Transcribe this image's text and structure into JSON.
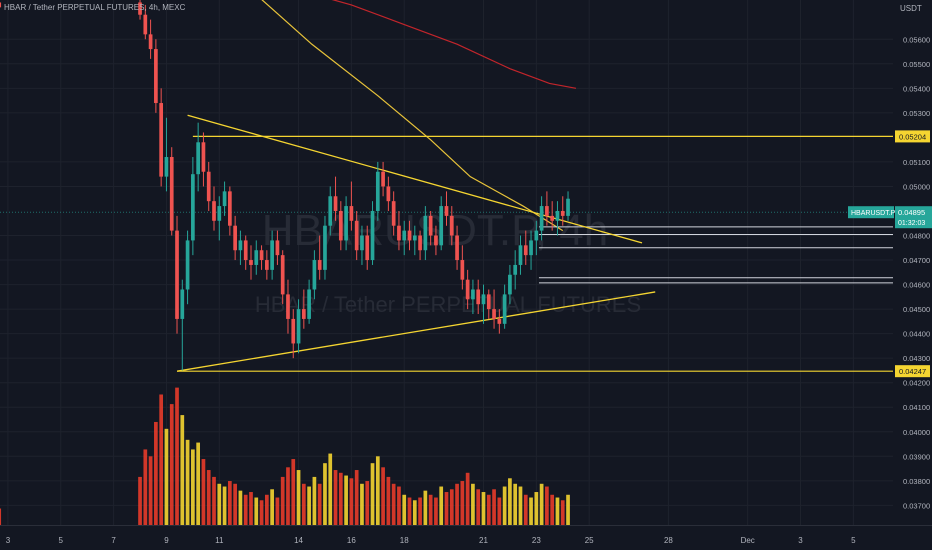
{
  "header": {
    "symbol_title": "HBAR / Tether PERPETUAL FUTURES, 4h, MEXC",
    "price_unit": "USDT"
  },
  "watermark": {
    "symbol": "HBARUSDT.P, 4h",
    "description": "HBAR / Tether PERPETUAL FUTURES"
  },
  "price_tag": {
    "symbol": "HBARUSDT.P",
    "price": "0.04895",
    "countdown": "01:32:03"
  },
  "colors": {
    "background": "#131722",
    "up_candle": "#26a69a",
    "down_candle": "#ef5350",
    "trendline": "#f5d531",
    "level_line": "#d1d4dc",
    "ma_yellow": "#e8c33a",
    "ma_red": "#c2252b",
    "vol_up": "#f5d531",
    "vol_down": "#e83b2a"
  },
  "chart_data": {
    "type": "candlestick",
    "title": "HBAR / Tether PERPETUAL FUTURES, 4h, MEXC",
    "y_unit": "USDT",
    "ylim": [
      0.0362,
      0.0576
    ],
    "y_ticks": [
      "0.05600",
      "0.05500",
      "0.05400",
      "0.05300",
      "0.05100",
      "0.05000",
      "0.04800",
      "0.04700",
      "0.04600",
      "0.04500",
      "0.04400",
      "0.04300",
      "0.04200",
      "0.04100",
      "0.04000",
      "0.03900",
      "0.03800",
      "0.03700"
    ],
    "x_ticks": [
      "3",
      "5",
      "7",
      "9",
      "11",
      "14",
      "16",
      "18",
      "21",
      "23",
      "25",
      "28",
      "Dec",
      "3",
      "5"
    ],
    "x_tick_days": [
      3,
      5,
      7,
      9,
      11,
      14,
      16,
      18,
      21,
      23,
      25,
      28,
      31,
      33,
      35
    ],
    "x_range_days": [
      2.7,
      36.5
    ],
    "grid": true,
    "price_labels": [
      {
        "price": 0.05204,
        "label": "0.05204"
      },
      {
        "price": 0.04247,
        "label": "0.04247"
      }
    ],
    "horizontal_levels": [
      0.04835,
      0.04804,
      0.0475,
      0.04628,
      0.04607
    ],
    "level_x_start_day": 23.1,
    "trendlines": [
      {
        "name": "",
        "points": [
          [
            9.8,
            0.0529
          ],
          [
            27.0,
            0.0477
          ]
        ]
      },
      {
        "name": "",
        "points": [
          [
            9.4,
            0.04247
          ],
          [
            27.5,
            0.0457
          ]
        ]
      }
    ],
    "price_line": 0.04895,
    "moving_averages": [
      {
        "color": "#e8c33a",
        "points": [
          [
            12.0,
            0.0582
          ],
          [
            14.5,
            0.0558
          ],
          [
            17.0,
            0.0537
          ],
          [
            19.0,
            0.0519
          ],
          [
            20.5,
            0.0504
          ],
          [
            21.5,
            0.0498
          ],
          [
            22.5,
            0.0492
          ],
          [
            24.0,
            0.0482
          ]
        ]
      },
      {
        "color": "#c2252b",
        "points": [
          [
            14.0,
            0.058
          ],
          [
            16.0,
            0.0574
          ],
          [
            18.0,
            0.0566
          ],
          [
            20.0,
            0.0558
          ],
          [
            22.0,
            0.0548
          ],
          [
            23.5,
            0.0542
          ],
          [
            24.5,
            0.054
          ]
        ]
      }
    ],
    "volume": {
      "bottom": 0.0362,
      "top": 0.0418,
      "max_value": 1.0
    },
    "candles": [
      {
        "t": 2.67,
        "o": 0.0575,
        "h": 0.0578,
        "l": 0.0571,
        "c": 0.0573,
        "v": 0.12
      },
      {
        "t": 8.0,
        "o": 0.0575,
        "h": 0.058,
        "l": 0.0568,
        "c": 0.057,
        "v": 0.35
      },
      {
        "t": 8.2,
        "o": 0.057,
        "h": 0.0574,
        "l": 0.056,
        "c": 0.0562,
        "v": 0.55
      },
      {
        "t": 8.4,
        "o": 0.0562,
        "h": 0.0568,
        "l": 0.0552,
        "c": 0.0556,
        "v": 0.5
      },
      {
        "t": 8.6,
        "o": 0.0556,
        "h": 0.056,
        "l": 0.053,
        "c": 0.0534,
        "v": 0.75
      },
      {
        "t": 8.8,
        "o": 0.0534,
        "h": 0.054,
        "l": 0.05,
        "c": 0.0504,
        "v": 0.95
      },
      {
        "t": 9.0,
        "o": 0.0504,
        "h": 0.0528,
        "l": 0.0498,
        "c": 0.0512,
        "v": 0.7
      },
      {
        "t": 9.2,
        "o": 0.0512,
        "h": 0.0516,
        "l": 0.048,
        "c": 0.0482,
        "v": 0.88
      },
      {
        "t": 9.4,
        "o": 0.0482,
        "h": 0.0488,
        "l": 0.044,
        "c": 0.0446,
        "v": 1.0
      },
      {
        "t": 9.6,
        "o": 0.0446,
        "h": 0.0462,
        "l": 0.0425,
        "c": 0.0458,
        "v": 0.8
      },
      {
        "t": 9.8,
        "o": 0.0458,
        "h": 0.0482,
        "l": 0.0452,
        "c": 0.0478,
        "v": 0.62
      },
      {
        "t": 10.0,
        "o": 0.0478,
        "h": 0.0512,
        "l": 0.0472,
        "c": 0.0505,
        "v": 0.55
      },
      {
        "t": 10.2,
        "o": 0.0505,
        "h": 0.0526,
        "l": 0.0498,
        "c": 0.0518,
        "v": 0.6
      },
      {
        "t": 10.4,
        "o": 0.0518,
        "h": 0.0522,
        "l": 0.05,
        "c": 0.0506,
        "v": 0.48
      },
      {
        "t": 10.6,
        "o": 0.0506,
        "h": 0.051,
        "l": 0.049,
        "c": 0.0494,
        "v": 0.4
      },
      {
        "t": 10.8,
        "o": 0.0494,
        "h": 0.05,
        "l": 0.0482,
        "c": 0.0486,
        "v": 0.35
      },
      {
        "t": 11.0,
        "o": 0.0486,
        "h": 0.0496,
        "l": 0.0478,
        "c": 0.0492,
        "v": 0.3
      },
      {
        "t": 11.2,
        "o": 0.0492,
        "h": 0.0502,
        "l": 0.0488,
        "c": 0.0498,
        "v": 0.28
      },
      {
        "t": 11.4,
        "o": 0.0498,
        "h": 0.05,
        "l": 0.048,
        "c": 0.0484,
        "v": 0.32
      },
      {
        "t": 11.6,
        "o": 0.0484,
        "h": 0.0488,
        "l": 0.047,
        "c": 0.0474,
        "v": 0.3
      },
      {
        "t": 11.8,
        "o": 0.0474,
        "h": 0.0482,
        "l": 0.0468,
        "c": 0.0478,
        "v": 0.25
      },
      {
        "t": 12.0,
        "o": 0.0478,
        "h": 0.048,
        "l": 0.0466,
        "c": 0.047,
        "v": 0.22
      },
      {
        "t": 12.2,
        "o": 0.047,
        "h": 0.0476,
        "l": 0.0462,
        "c": 0.0468,
        "v": 0.24
      },
      {
        "t": 12.4,
        "o": 0.0468,
        "h": 0.0478,
        "l": 0.0464,
        "c": 0.0474,
        "v": 0.2
      },
      {
        "t": 12.6,
        "o": 0.0474,
        "h": 0.0476,
        "l": 0.0466,
        "c": 0.047,
        "v": 0.18
      },
      {
        "t": 12.8,
        "o": 0.047,
        "h": 0.0474,
        "l": 0.0462,
        "c": 0.0466,
        "v": 0.22
      },
      {
        "t": 13.0,
        "o": 0.0466,
        "h": 0.0482,
        "l": 0.0462,
        "c": 0.0478,
        "v": 0.26
      },
      {
        "t": 13.2,
        "o": 0.0478,
        "h": 0.0482,
        "l": 0.0468,
        "c": 0.0472,
        "v": 0.2
      },
      {
        "t": 13.4,
        "o": 0.0472,
        "h": 0.0474,
        "l": 0.0452,
        "c": 0.0456,
        "v": 0.35
      },
      {
        "t": 13.6,
        "o": 0.0456,
        "h": 0.0462,
        "l": 0.044,
        "c": 0.0446,
        "v": 0.42
      },
      {
        "t": 13.8,
        "o": 0.0446,
        "h": 0.045,
        "l": 0.043,
        "c": 0.0436,
        "v": 0.48
      },
      {
        "t": 14.0,
        "o": 0.0436,
        "h": 0.0454,
        "l": 0.0432,
        "c": 0.045,
        "v": 0.4
      },
      {
        "t": 14.2,
        "o": 0.045,
        "h": 0.0458,
        "l": 0.0442,
        "c": 0.0446,
        "v": 0.3
      },
      {
        "t": 14.4,
        "o": 0.0446,
        "h": 0.0462,
        "l": 0.0444,
        "c": 0.0458,
        "v": 0.28
      },
      {
        "t": 14.6,
        "o": 0.0458,
        "h": 0.0474,
        "l": 0.0454,
        "c": 0.047,
        "v": 0.35
      },
      {
        "t": 14.8,
        "o": 0.047,
        "h": 0.048,
        "l": 0.0462,
        "c": 0.0466,
        "v": 0.3
      },
      {
        "t": 15.0,
        "o": 0.0466,
        "h": 0.0488,
        "l": 0.0462,
        "c": 0.0484,
        "v": 0.45
      },
      {
        "t": 15.2,
        "o": 0.0484,
        "h": 0.05,
        "l": 0.048,
        "c": 0.0496,
        "v": 0.52
      },
      {
        "t": 15.4,
        "o": 0.0496,
        "h": 0.0504,
        "l": 0.0486,
        "c": 0.049,
        "v": 0.4
      },
      {
        "t": 15.6,
        "o": 0.049,
        "h": 0.0494,
        "l": 0.0474,
        "c": 0.0478,
        "v": 0.38
      },
      {
        "t": 15.8,
        "o": 0.0478,
        "h": 0.0496,
        "l": 0.0474,
        "c": 0.0492,
        "v": 0.36
      },
      {
        "t": 16.0,
        "o": 0.0492,
        "h": 0.0502,
        "l": 0.0482,
        "c": 0.0486,
        "v": 0.34
      },
      {
        "t": 16.2,
        "o": 0.0486,
        "h": 0.049,
        "l": 0.047,
        "c": 0.0474,
        "v": 0.4
      },
      {
        "t": 16.4,
        "o": 0.0474,
        "h": 0.0484,
        "l": 0.0468,
        "c": 0.048,
        "v": 0.3
      },
      {
        "t": 16.6,
        "o": 0.048,
        "h": 0.0484,
        "l": 0.0466,
        "c": 0.047,
        "v": 0.32
      },
      {
        "t": 16.8,
        "o": 0.047,
        "h": 0.0494,
        "l": 0.0468,
        "c": 0.049,
        "v": 0.45
      },
      {
        "t": 17.0,
        "o": 0.049,
        "h": 0.051,
        "l": 0.0486,
        "c": 0.0506,
        "v": 0.5
      },
      {
        "t": 17.2,
        "o": 0.0506,
        "h": 0.051,
        "l": 0.0496,
        "c": 0.05,
        "v": 0.42
      },
      {
        "t": 17.4,
        "o": 0.05,
        "h": 0.0504,
        "l": 0.049,
        "c": 0.0494,
        "v": 0.35
      },
      {
        "t": 17.6,
        "o": 0.0494,
        "h": 0.0498,
        "l": 0.048,
        "c": 0.0484,
        "v": 0.3
      },
      {
        "t": 17.8,
        "o": 0.0484,
        "h": 0.049,
        "l": 0.0474,
        "c": 0.0478,
        "v": 0.28
      },
      {
        "t": 18.0,
        "o": 0.0478,
        "h": 0.0486,
        "l": 0.0472,
        "c": 0.0482,
        "v": 0.22
      },
      {
        "t": 18.2,
        "o": 0.0482,
        "h": 0.0486,
        "l": 0.0474,
        "c": 0.0478,
        "v": 0.2
      },
      {
        "t": 18.4,
        "o": 0.0478,
        "h": 0.0484,
        "l": 0.0472,
        "c": 0.048,
        "v": 0.18
      },
      {
        "t": 18.6,
        "o": 0.048,
        "h": 0.0482,
        "l": 0.047,
        "c": 0.0474,
        "v": 0.2
      },
      {
        "t": 18.8,
        "o": 0.0474,
        "h": 0.0492,
        "l": 0.047,
        "c": 0.0488,
        "v": 0.25
      },
      {
        "t": 19.0,
        "o": 0.0488,
        "h": 0.049,
        "l": 0.0476,
        "c": 0.048,
        "v": 0.22
      },
      {
        "t": 19.2,
        "o": 0.048,
        "h": 0.0484,
        "l": 0.0472,
        "c": 0.0476,
        "v": 0.2
      },
      {
        "t": 19.4,
        "o": 0.0476,
        "h": 0.0496,
        "l": 0.0474,
        "c": 0.0492,
        "v": 0.28
      },
      {
        "t": 19.6,
        "o": 0.0492,
        "h": 0.0498,
        "l": 0.0484,
        "c": 0.0488,
        "v": 0.24
      },
      {
        "t": 19.8,
        "o": 0.0488,
        "h": 0.0492,
        "l": 0.0476,
        "c": 0.048,
        "v": 0.26
      },
      {
        "t": 20.0,
        "o": 0.048,
        "h": 0.0484,
        "l": 0.0466,
        "c": 0.047,
        "v": 0.3
      },
      {
        "t": 20.2,
        "o": 0.047,
        "h": 0.0476,
        "l": 0.0458,
        "c": 0.0462,
        "v": 0.32
      },
      {
        "t": 20.4,
        "o": 0.0462,
        "h": 0.0466,
        "l": 0.045,
        "c": 0.0454,
        "v": 0.38
      },
      {
        "t": 20.6,
        "o": 0.0454,
        "h": 0.0462,
        "l": 0.0448,
        "c": 0.0458,
        "v": 0.3
      },
      {
        "t": 20.8,
        "o": 0.0458,
        "h": 0.0462,
        "l": 0.0448,
        "c": 0.0452,
        "v": 0.26
      },
      {
        "t": 21.0,
        "o": 0.0452,
        "h": 0.046,
        "l": 0.0444,
        "c": 0.0456,
        "v": 0.24
      },
      {
        "t": 21.2,
        "o": 0.0456,
        "h": 0.0458,
        "l": 0.0446,
        "c": 0.045,
        "v": 0.22
      },
      {
        "t": 21.4,
        "o": 0.045,
        "h": 0.0458,
        "l": 0.0442,
        "c": 0.0446,
        "v": 0.26
      },
      {
        "t": 21.6,
        "o": 0.0446,
        "h": 0.045,
        "l": 0.044,
        "c": 0.0444,
        "v": 0.2
      },
      {
        "t": 21.8,
        "o": 0.0444,
        "h": 0.046,
        "l": 0.0442,
        "c": 0.0456,
        "v": 0.28
      },
      {
        "t": 22.0,
        "o": 0.0456,
        "h": 0.0468,
        "l": 0.0452,
        "c": 0.0464,
        "v": 0.34
      },
      {
        "t": 22.2,
        "o": 0.0464,
        "h": 0.0474,
        "l": 0.0458,
        "c": 0.0468,
        "v": 0.3
      },
      {
        "t": 22.4,
        "o": 0.0468,
        "h": 0.048,
        "l": 0.0464,
        "c": 0.0476,
        "v": 0.28
      },
      {
        "t": 22.6,
        "o": 0.0476,
        "h": 0.0482,
        "l": 0.0468,
        "c": 0.0472,
        "v": 0.22
      },
      {
        "t": 22.8,
        "o": 0.0472,
        "h": 0.0482,
        "l": 0.0466,
        "c": 0.0478,
        "v": 0.2
      },
      {
        "t": 23.0,
        "o": 0.0478,
        "h": 0.0486,
        "l": 0.0472,
        "c": 0.0482,
        "v": 0.24
      },
      {
        "t": 23.2,
        "o": 0.0482,
        "h": 0.0496,
        "l": 0.0478,
        "c": 0.0492,
        "v": 0.3
      },
      {
        "t": 23.4,
        "o": 0.0492,
        "h": 0.0498,
        "l": 0.0484,
        "c": 0.0488,
        "v": 0.28
      },
      {
        "t": 23.6,
        "o": 0.0488,
        "h": 0.0494,
        "l": 0.0482,
        "c": 0.0486,
        "v": 0.22
      },
      {
        "t": 23.8,
        "o": 0.0486,
        "h": 0.0494,
        "l": 0.048,
        "c": 0.049,
        "v": 0.2
      },
      {
        "t": 24.0,
        "o": 0.049,
        "h": 0.0496,
        "l": 0.0484,
        "c": 0.0488,
        "v": 0.18
      },
      {
        "t": 24.2,
        "o": 0.0488,
        "h": 0.0498,
        "l": 0.0486,
        "c": 0.0495,
        "v": 0.22
      }
    ]
  }
}
